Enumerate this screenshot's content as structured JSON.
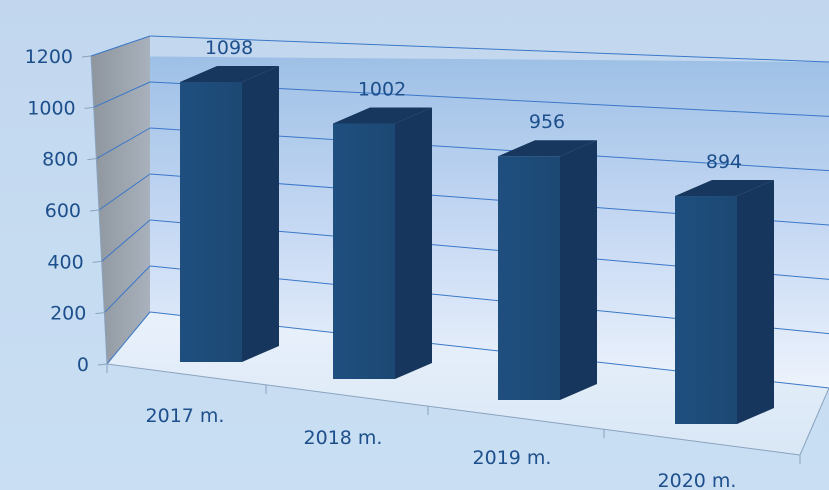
{
  "chart_data": {
    "type": "bar",
    "title": "",
    "xlabel": "",
    "ylabel": "",
    "categories": [
      "2017 m.",
      "2018 m.",
      "2019 m.",
      "2020 m."
    ],
    "values": [
      1098,
      1002,
      956,
      894
    ],
    "y_ticks": [
      "0",
      "200",
      "400",
      "600",
      "800",
      "1000",
      "1200"
    ],
    "ylim": [
      0,
      1200
    ],
    "grid": true,
    "legend": "none",
    "three_d": true,
    "colors": {
      "bar_front": "#1f4e79",
      "bar_side": "#17365d",
      "bar_top": "#17375e",
      "gridline": "#3b78c8",
      "text": "#1d4f8c",
      "background": "#c5daf0"
    }
  }
}
